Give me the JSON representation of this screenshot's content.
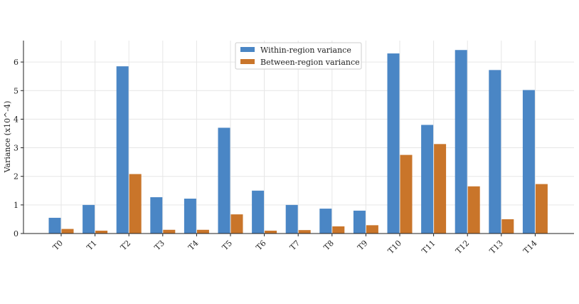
{
  "chart_data": {
    "type": "bar",
    "title": "",
    "xlabel": "",
    "ylabel": "Variance (x10^-4)",
    "categories": [
      "T0",
      "T1",
      "T2",
      "T3",
      "T4",
      "T5",
      "T6",
      "T7",
      "T8",
      "T9",
      "T10",
      "T11",
      "T12",
      "T13",
      "T14"
    ],
    "series": [
      {
        "name": "Within-region variance",
        "color": "#4a86c5",
        "values": [
          0.55,
          1.0,
          5.85,
          1.27,
          1.22,
          3.7,
          1.5,
          1.0,
          0.87,
          0.8,
          6.3,
          3.8,
          6.42,
          5.72,
          5.02
        ]
      },
      {
        "name": "Between-region variance",
        "color": "#c9752a",
        "values": [
          0.16,
          0.1,
          2.08,
          0.13,
          0.13,
          0.67,
          0.1,
          0.12,
          0.25,
          0.29,
          2.75,
          3.13,
          1.65,
          0.5,
          1.73
        ]
      }
    ],
    "ylim": [
      0,
      6.75
    ],
    "yticks": [
      "0",
      "1",
      "2",
      "3",
      "4",
      "5",
      "6"
    ],
    "grid": true,
    "legend_position": "top-center"
  }
}
